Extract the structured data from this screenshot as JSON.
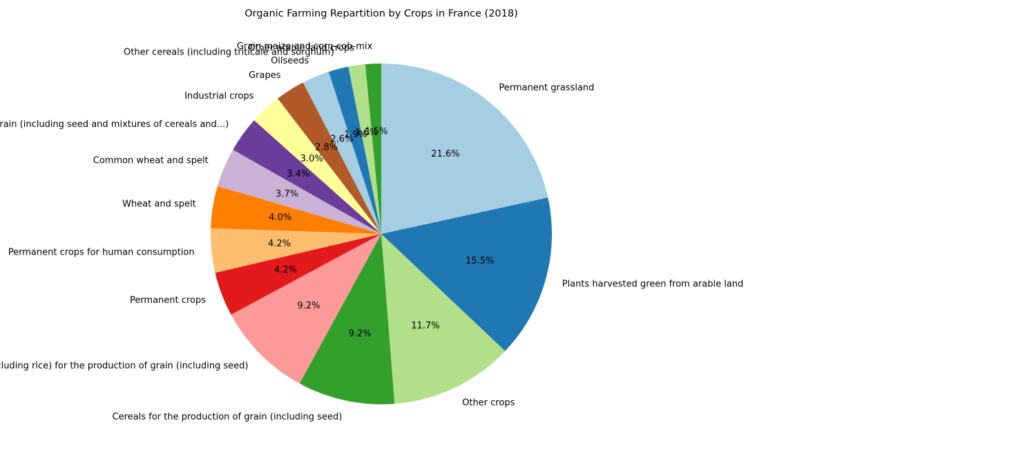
{
  "chart_data": {
    "type": "pie",
    "title": "Organic Farming Repartition by Crops in France (2018)",
    "start_angle_deg": 90,
    "direction": "counterclockwise",
    "slices": [
      {
        "label": "Grain maize and corn-cob-mix",
        "pct": "1.5%",
        "value": 1.5,
        "color": "#33a02c"
      },
      {
        "label": "Other arable land crops",
        "pct": "1.6%",
        "value": 1.6,
        "color": "#b2df8a"
      },
      {
        "label": "Other cereals (including triticale and sorghum)",
        "pct": "1.9%",
        "value": 1.9,
        "color": "#1f78b4"
      },
      {
        "label": "Oilseeds",
        "pct": "2.6%",
        "value": 2.6,
        "color": "#a6cee3"
      },
      {
        "label": "Grapes",
        "pct": "2.8%",
        "value": 2.8,
        "color": "#b15928"
      },
      {
        "label": "Industrial crops",
        "pct": "3.0%",
        "value": 3.0,
        "color": "#ffff99"
      },
      {
        "label": "Dry pulses and protein crops for the production of grain (including seed and mixtures of cereals and...)",
        "pct": "3.4%",
        "value": 3.4,
        "color": "#6a3d9a"
      },
      {
        "label": "Common wheat and spelt",
        "pct": "3.7%",
        "value": 3.7,
        "color": "#cab2d6"
      },
      {
        "label": "Wheat and spelt",
        "pct": "4.0%",
        "value": 4.0,
        "color": "#ff7f00"
      },
      {
        "label": "Permanent crops for human consumption",
        "pct": "4.2%",
        "value": 4.2,
        "color": "#fdbf6f"
      },
      {
        "label": "Permanent crops",
        "pct": "4.2%",
        "value": 4.2,
        "color": "#e31a1c"
      },
      {
        "label": "Cereals (excluding rice) for the production of grain (including seed)",
        "pct": "9.2%",
        "value": 9.2,
        "color": "#fb9a99"
      },
      {
        "label": "Cereals for the production of grain (including seed)",
        "pct": "9.2%",
        "value": 9.2,
        "color": "#33a02c"
      },
      {
        "label": "Other crops",
        "pct": "11.7%",
        "value": 11.7,
        "color": "#b2df8a"
      },
      {
        "label": "Plants harvested green from arable land",
        "pct": "15.5%",
        "value": 15.5,
        "color": "#1f78b4"
      },
      {
        "label": "Permanent grassland",
        "pct": "21.6%",
        "value": 21.6,
        "color": "#a6cee3"
      }
    ],
    "legend": "none"
  }
}
